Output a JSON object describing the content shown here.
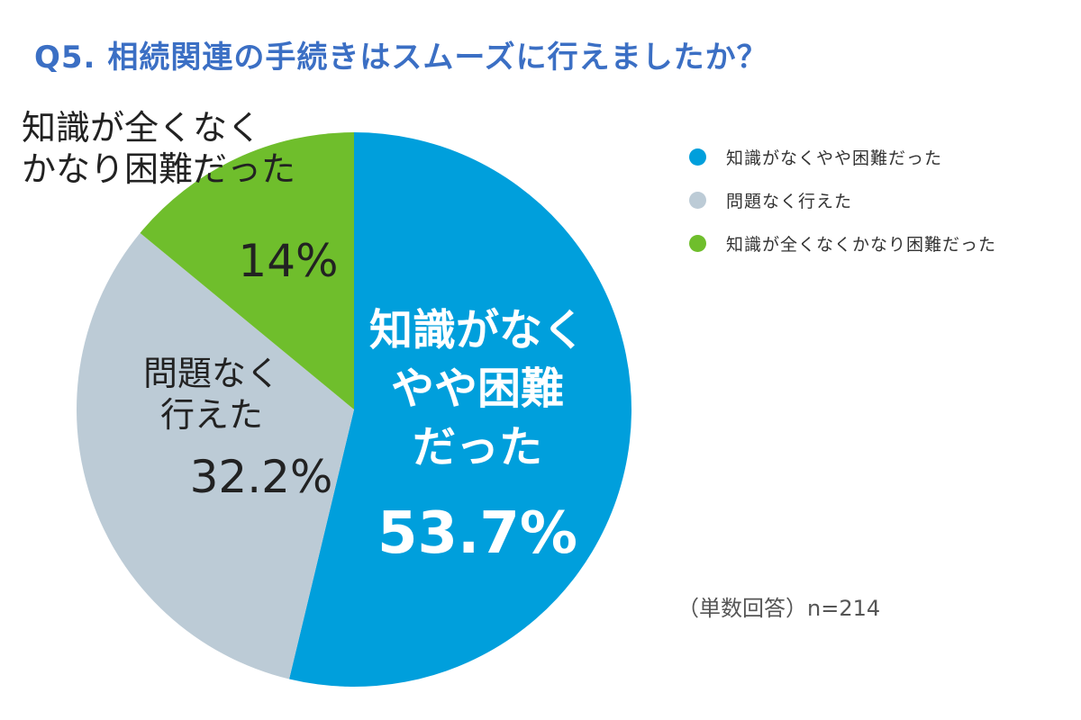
{
  "chart_data": {
    "type": "pie",
    "title": "Q5. 相続関連の手続きはスムーズに行えましたか？",
    "slices": [
      {
        "name": "知識がなくやや困難だった",
        "label_lines": [
          "知識がなく",
          "やや困難",
          "だった"
        ],
        "value": 53.7,
        "display": "53.7%",
        "color": "#009fdc"
      },
      {
        "name": "問題なく行えた",
        "label_lines": [
          "問題なく",
          "行えた"
        ],
        "value": 32.2,
        "display": "32.2%",
        "color": "#bccbd6"
      },
      {
        "name": "知識が全くなくかなり困難だった",
        "label_lines": [
          "知識が全くなく",
          "かなり困難だった"
        ],
        "value": 14,
        "display": "14%",
        "color": "#6fbe2c"
      }
    ],
    "legend_position": "right",
    "note": "（単数回答）n=214"
  }
}
